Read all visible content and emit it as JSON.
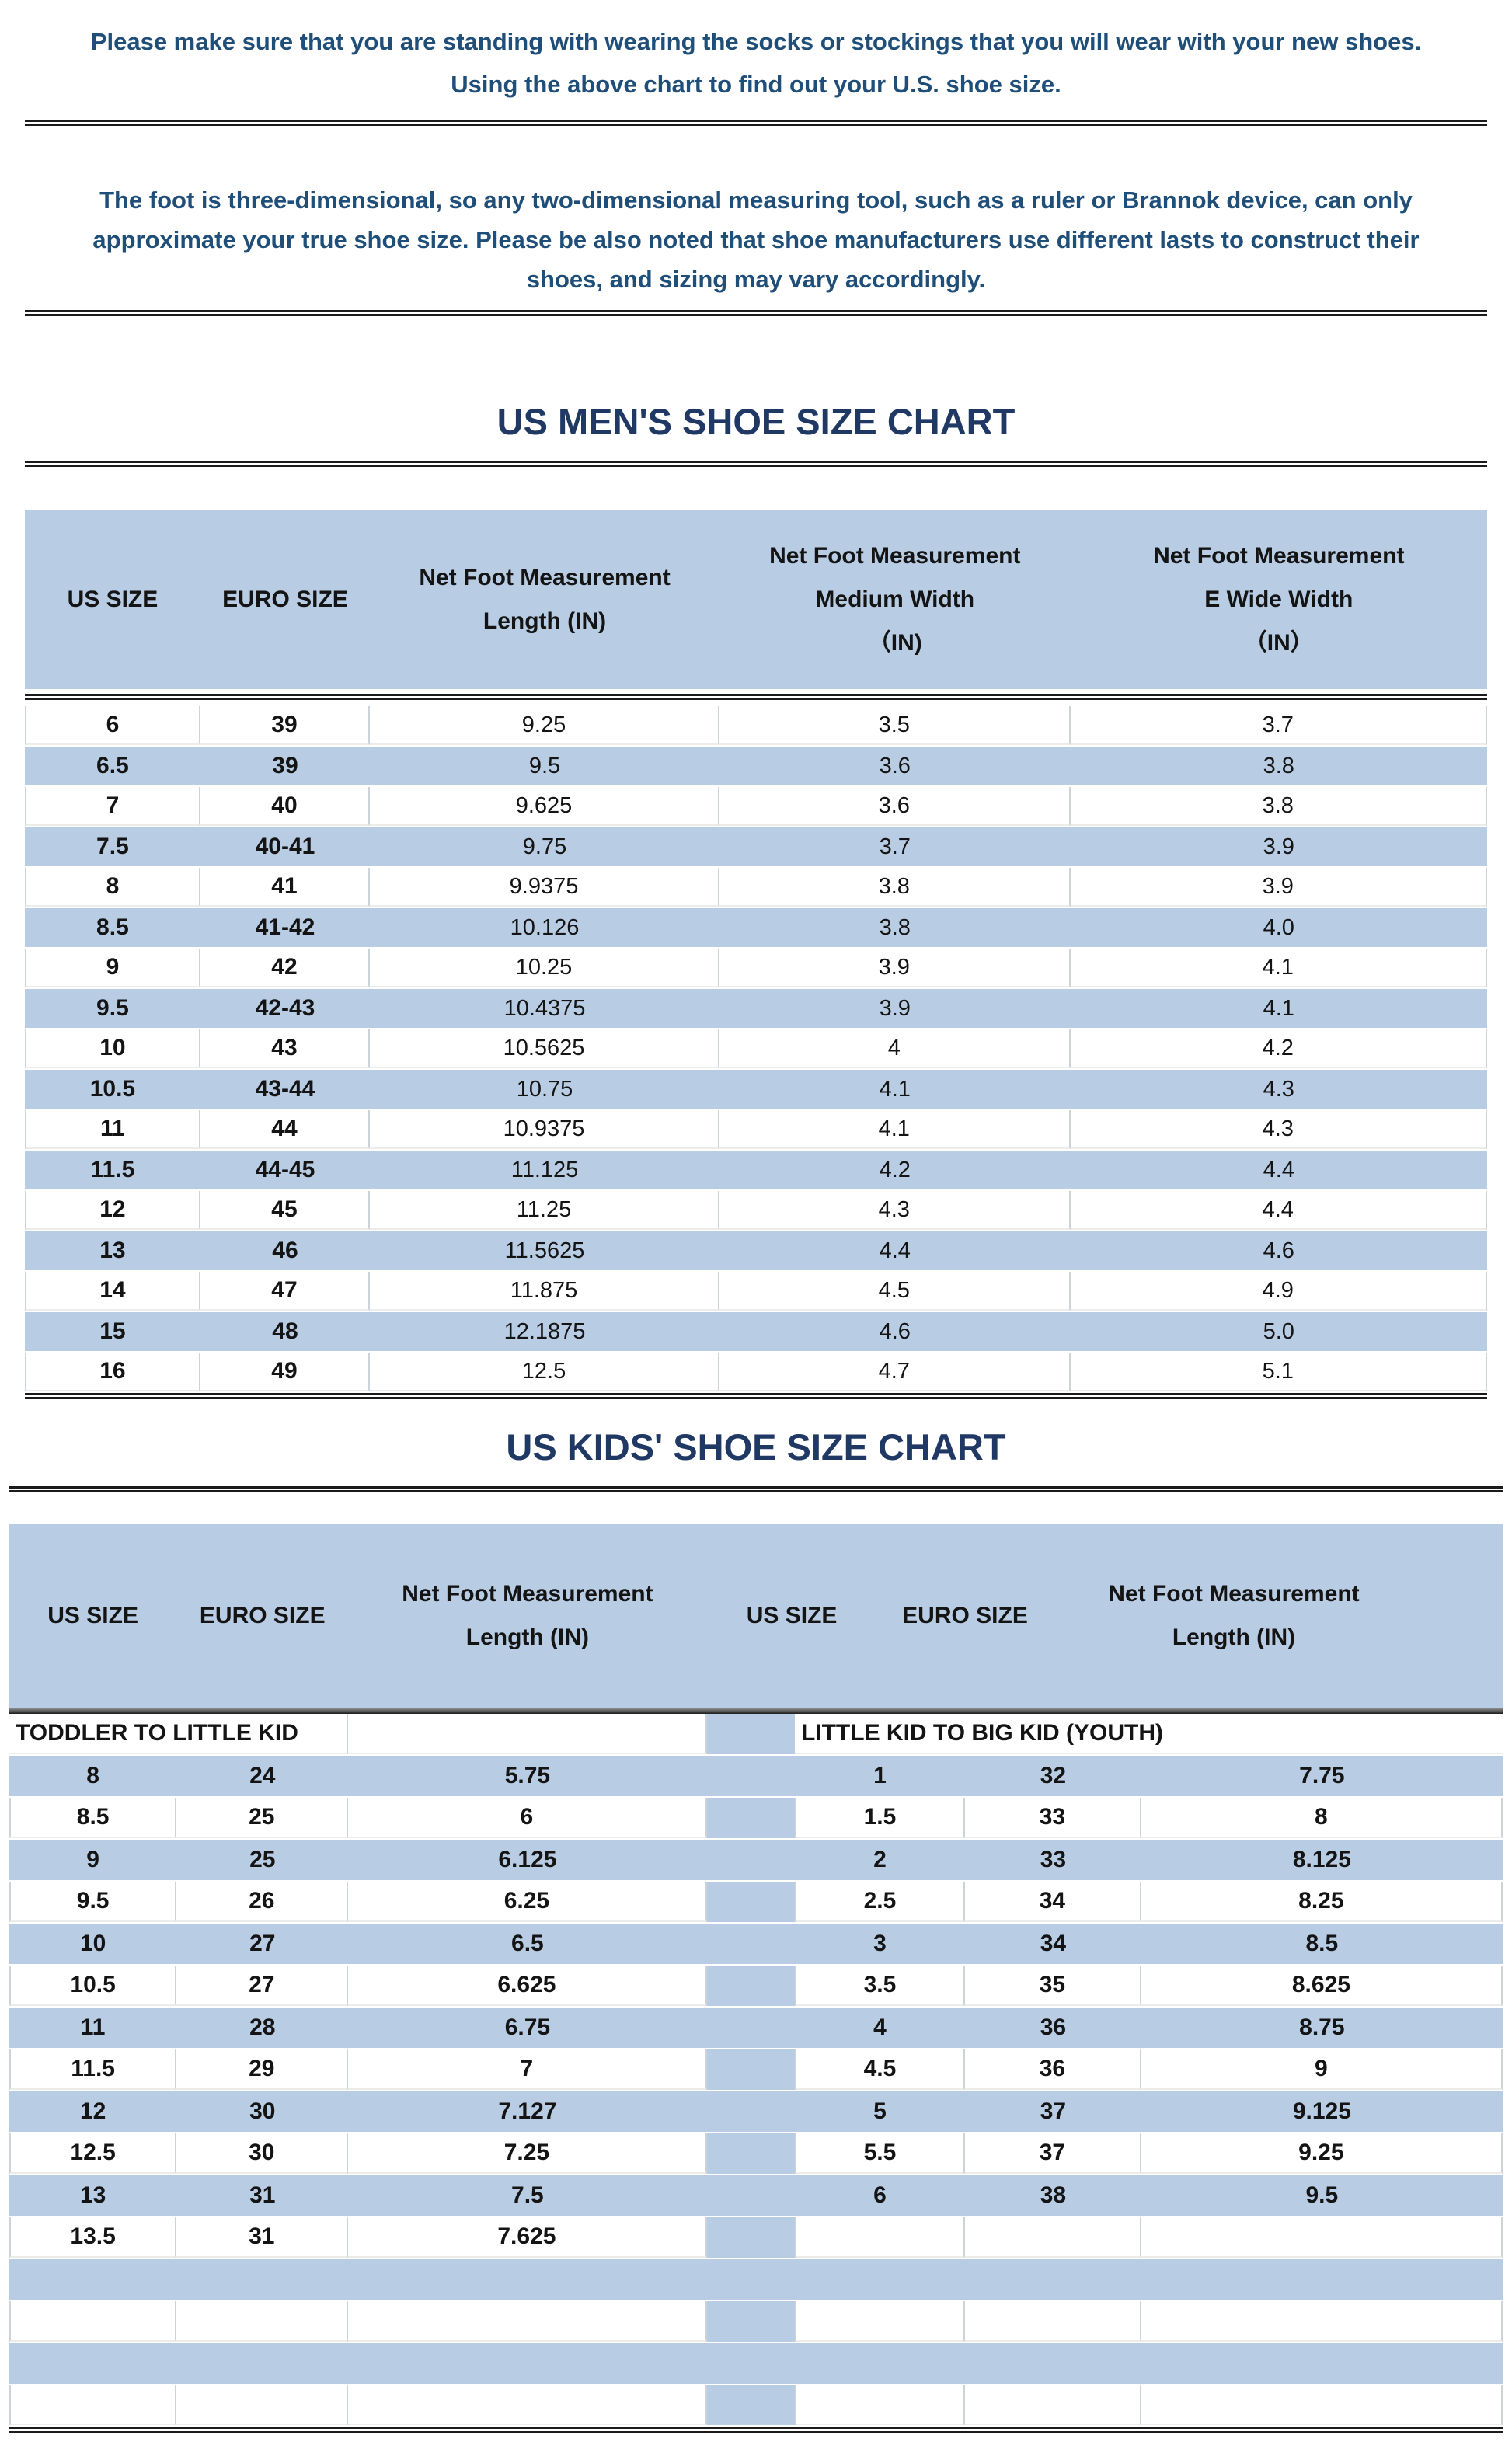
{
  "colors": {
    "band": "#b8cce4",
    "navy": "#1f4e79",
    "title": "#203864",
    "line": "#1b1b1b"
  },
  "intro": {
    "p1": "Please make sure that you are standing with wearing the socks or stockings that you will wear with your new shoes. Using the above chart to find out your U.S. shoe size.",
    "p2": "The foot is three-dimensional, so any two-dimensional measuring tool, such as a ruler or Brannok device, can only approximate your true shoe size. Please be also noted that shoe manufacturers use different lasts to construct their shoes, and sizing may vary accordingly."
  },
  "mens_chart": {
    "title": "US MEN'S SHOE SIZE CHART",
    "columns": [
      {
        "id": "us-size",
        "lines": [
          "US SIZE"
        ]
      },
      {
        "id": "euro-size",
        "lines": [
          "EURO SIZE"
        ]
      },
      {
        "id": "length",
        "lines": [
          "Net Foot Measurement",
          "Length (IN)"
        ]
      },
      {
        "id": "medium-width",
        "lines": [
          "Net Foot Measurement",
          "Medium Width",
          "（IN)"
        ]
      },
      {
        "id": "e-wide-width",
        "lines": [
          "Net Foot Measurement",
          "E Wide Width",
          "（IN）"
        ]
      }
    ],
    "rows": [
      [
        "6",
        "39",
        "9.25",
        "3.5",
        "3.7"
      ],
      [
        "6.5",
        "39",
        "9.5",
        "3.6",
        "3.8"
      ],
      [
        "7",
        "40",
        "9.625",
        "3.6",
        "3.8"
      ],
      [
        "7.5",
        "40-41",
        "9.75",
        "3.7",
        "3.9"
      ],
      [
        "8",
        "41",
        "9.9375",
        "3.8",
        "3.9"
      ],
      [
        "8.5",
        "41-42",
        "10.126",
        "3.8",
        "4.0"
      ],
      [
        "9",
        "42",
        "10.25",
        "3.9",
        "4.1"
      ],
      [
        "9.5",
        "42-43",
        "10.4375",
        "3.9",
        "4.1"
      ],
      [
        "10",
        "43",
        "10.5625",
        "4",
        "4.2"
      ],
      [
        "10.5",
        "43-44",
        "10.75",
        "4.1",
        "4.3"
      ],
      [
        "11",
        "44",
        "10.9375",
        "4.1",
        "4.3"
      ],
      [
        "11.5",
        "44-45",
        "11.125",
        "4.2",
        "4.4"
      ],
      [
        "12",
        "45",
        "11.25",
        "4.3",
        "4.4"
      ],
      [
        "13",
        "46",
        "11.5625",
        "4.4",
        "4.6"
      ],
      [
        "14",
        "47",
        "11.875",
        "4.5",
        "4.9"
      ],
      [
        "15",
        "48",
        "12.1875",
        "4.6",
        "5.0"
      ],
      [
        "16",
        "49",
        "12.5",
        "4.7",
        "5.1"
      ]
    ]
  },
  "kids_chart": {
    "title": "US KIDS' SHOE SIZE CHART",
    "columns": [
      {
        "id": "us-size",
        "lines": [
          "US SIZE"
        ]
      },
      {
        "id": "euro-size",
        "lines": [
          "EURO SIZE"
        ]
      },
      {
        "id": "length",
        "lines": [
          "Net Foot Measurement",
          "Length (IN)"
        ]
      }
    ],
    "left_section": "TODDLER TO LITTLE KID",
    "right_section": "LITTLE KID TO BIG KID (YOUTH)",
    "rows": [
      [
        "8",
        "24",
        "5.75",
        "1",
        "32",
        "7.75"
      ],
      [
        "8.5",
        "25",
        "6",
        "1.5",
        "33",
        "8"
      ],
      [
        "9",
        "25",
        "6.125",
        "2",
        "33",
        "8.125"
      ],
      [
        "9.5",
        "26",
        "6.25",
        "2.5",
        "34",
        "8.25"
      ],
      [
        "10",
        "27",
        "6.5",
        "3",
        "34",
        "8.5"
      ],
      [
        "10.5",
        "27",
        "6.625",
        "3.5",
        "35",
        "8.625"
      ],
      [
        "11",
        "28",
        "6.75",
        "4",
        "36",
        "8.75"
      ],
      [
        "11.5",
        "29",
        "7",
        "4.5",
        "36",
        "9"
      ],
      [
        "12",
        "30",
        "7.127",
        "5",
        "37",
        "9.125"
      ],
      [
        "12.5",
        "30",
        "7.25",
        "5.5",
        "37",
        "9.25"
      ],
      [
        "13",
        "31",
        "7.5",
        "6",
        "38",
        "9.5"
      ],
      [
        "13.5",
        "31",
        "7.625",
        "",
        "",
        ""
      ],
      [
        "",
        "",
        "",
        "",
        "",
        ""
      ],
      [
        "",
        "",
        "",
        "",
        "",
        ""
      ],
      [
        "",
        "",
        "",
        "",
        "",
        ""
      ],
      [
        "",
        "",
        "",
        "",
        "",
        ""
      ]
    ]
  }
}
